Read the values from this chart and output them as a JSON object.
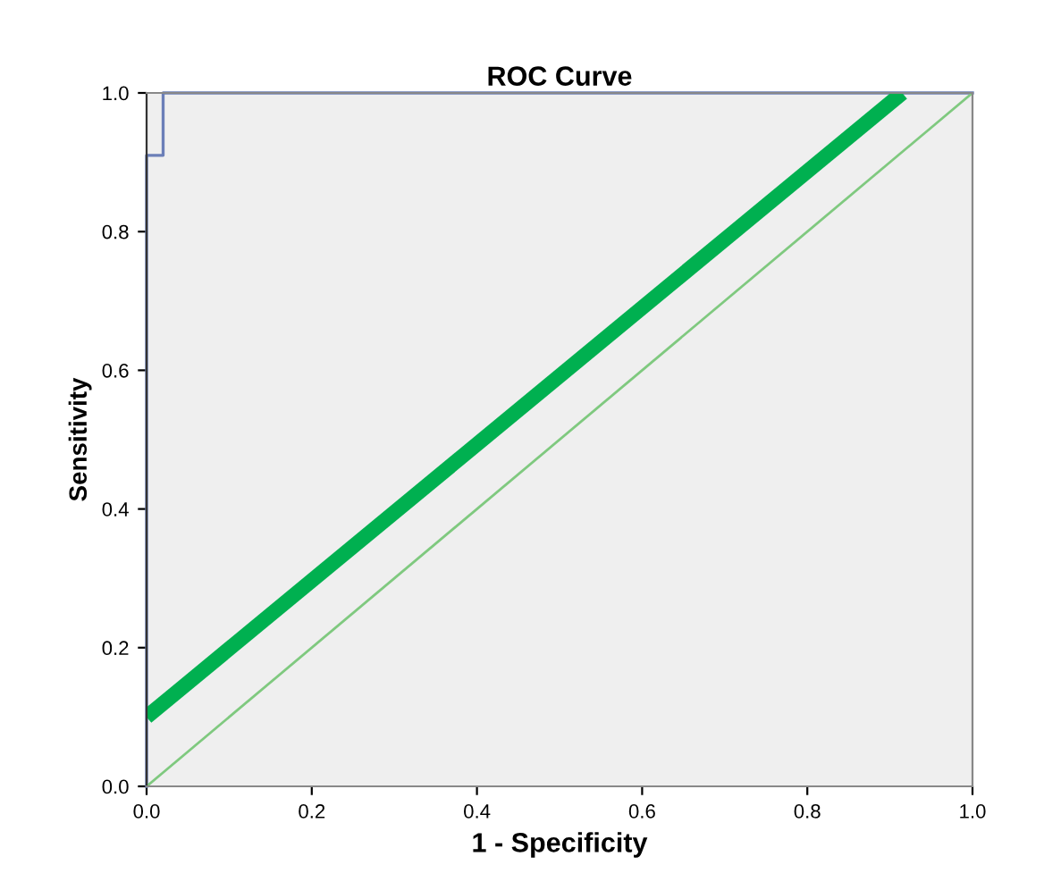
{
  "chart_data": {
    "type": "step",
    "title": "ROC Curve",
    "xlabel": "1 - Specificity",
    "ylabel": "Sensitivity",
    "series": [
      {
        "color": "#6b7fb8",
        "x": [
          0,
          0,
          0.02,
          0.02,
          1
        ],
        "values": [
          0,
          0.91,
          0.91,
          1,
          1
        ]
      },
      {
        "type": "line",
        "color": "#7fc97f",
        "x": [
          0,
          1
        ],
        "values": [
          0,
          1
        ]
      },
      {
        "type": "line",
        "color": "#00b050",
        "x": [
          0,
          0.915
        ],
        "values": [
          0.1,
          1
        ]
      }
    ],
    "xlim": [
      0,
      1
    ],
    "ylim": [
      0,
      1
    ],
    "xticks": [
      {
        "value": 0,
        "label": "0.0"
      },
      {
        "value": 0.2,
        "label": "0.2"
      },
      {
        "value": 0.4,
        "label": "0.4"
      },
      {
        "value": 0.6,
        "label": "0.6"
      },
      {
        "value": 0.8,
        "label": "0.8"
      },
      {
        "value": 1,
        "label": "1.0"
      }
    ],
    "yticks": [
      {
        "value": 0,
        "label": "0.0"
      },
      {
        "value": 0.2,
        "label": "0.2"
      },
      {
        "value": 0.4,
        "label": "0.4"
      },
      {
        "value": 0.6,
        "label": "0.6"
      },
      {
        "value": 0.8,
        "label": "0.8"
      },
      {
        "value": 1,
        "label": "1.0"
      }
    ],
    "grid": false
  }
}
